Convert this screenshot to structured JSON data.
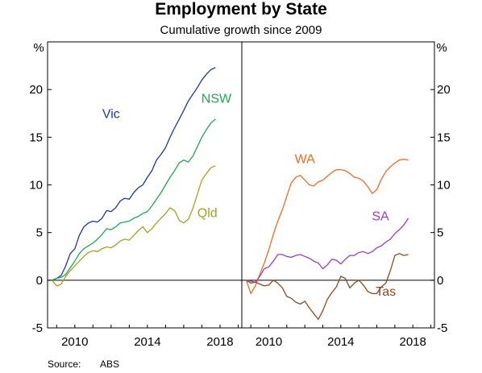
{
  "chart_data": {
    "type": "line",
    "title": "Employment by State",
    "subtitle": "Cumulative growth since 2009",
    "y_unit_left": "%",
    "y_unit_right": "%",
    "ylim": [
      -5,
      25
    ],
    "yticks": [
      -5,
      0,
      5,
      10,
      15,
      20
    ],
    "xlim": [
      2008.5,
      2019.2
    ],
    "xticks": [
      2010,
      2014,
      2018
    ],
    "source_label": "Source:",
    "source_value": "ABS",
    "panels": [
      {
        "series": [
          {
            "name": "Vic",
            "color": "#1f35a6",
            "x": [
              2008.75,
              2009.0,
              2009.25,
              2009.5,
              2009.75,
              2010.0,
              2010.25,
              2010.5,
              2010.75,
              2011.0,
              2011.25,
              2011.5,
              2011.75,
              2012.0,
              2012.25,
              2012.5,
              2012.75,
              2013.0,
              2013.25,
              2013.5,
              2013.75,
              2014.0,
              2014.25,
              2014.5,
              2014.75,
              2015.0,
              2015.25,
              2015.5,
              2015.75,
              2016.0,
              2016.25,
              2016.5,
              2016.75,
              2017.0,
              2017.25,
              2017.5,
              2017.75
            ],
            "y": [
              0,
              0.2,
              0.5,
              1.5,
              2.8,
              3.3,
              4.7,
              5.6,
              6.0,
              6.2,
              6.1,
              6.5,
              7.3,
              7.2,
              7.6,
              8.3,
              8.6,
              8.5,
              9.2,
              9.7,
              10.0,
              10.8,
              11.5,
              12.6,
              13.2,
              13.9,
              15.0,
              16.0,
              16.9,
              17.8,
              18.8,
              19.5,
              20.2,
              21.0,
              21.6,
              22.1,
              22.3
            ]
          },
          {
            "name": "NSW",
            "color": "#1ea84f",
            "x": [
              2008.75,
              2009.0,
              2009.25,
              2009.5,
              2009.75,
              2010.0,
              2010.25,
              2010.5,
              2010.75,
              2011.0,
              2011.25,
              2011.5,
              2011.75,
              2012.0,
              2012.25,
              2012.5,
              2012.75,
              2013.0,
              2013.25,
              2013.5,
              2013.75,
              2014.0,
              2014.25,
              2014.5,
              2014.75,
              2015.0,
              2015.25,
              2015.5,
              2015.75,
              2016.0,
              2016.25,
              2016.5,
              2016.75,
              2017.0,
              2017.25,
              2017.5,
              2017.75
            ],
            "y": [
              0,
              0.2,
              0.3,
              0.6,
              1.3,
              2.0,
              2.8,
              3.3,
              3.6,
              3.9,
              4.3,
              4.8,
              5.4,
              5.3,
              5.6,
              6.0,
              6.1,
              6.2,
              6.5,
              6.7,
              7.0,
              7.2,
              7.8,
              8.5,
              9.2,
              10.0,
              10.8,
              11.5,
              12.3,
              12.6,
              12.4,
              13.0,
              14.0,
              15.0,
              15.8,
              16.5,
              16.9
            ]
          },
          {
            "name": "Qld",
            "color": "#a3a11f",
            "x": [
              2008.75,
              2009.0,
              2009.25,
              2009.5,
              2009.75,
              2010.0,
              2010.25,
              2010.5,
              2010.75,
              2011.0,
              2011.25,
              2011.5,
              2011.75,
              2012.0,
              2012.25,
              2012.5,
              2012.75,
              2013.0,
              2013.25,
              2013.5,
              2013.75,
              2014.0,
              2014.25,
              2014.5,
              2014.75,
              2015.0,
              2015.25,
              2015.5,
              2015.75,
              2016.0,
              2016.25,
              2016.5,
              2016.75,
              2017.0,
              2017.25,
              2017.5,
              2017.75
            ],
            "y": [
              0,
              -0.6,
              -0.4,
              0.4,
              1.0,
              1.5,
              2.0,
              2.5,
              2.9,
              3.1,
              3.0,
              3.3,
              3.5,
              3.4,
              3.7,
              4.1,
              4.3,
              4.2,
              4.7,
              5.2,
              5.6,
              5.0,
              5.4,
              6.0,
              6.5,
              7.0,
              7.6,
              7.3,
              6.3,
              6.0,
              6.4,
              7.5,
              9.0,
              10.5,
              11.2,
              11.8,
              12.0
            ]
          }
        ],
        "labels": [
          {
            "text": "Vic",
            "color": "#1f35a6",
            "x": 2012.0,
            "y": 17.0
          },
          {
            "text": "NSW",
            "color": "#1ea84f",
            "x": 2017.8,
            "y": 18.6
          },
          {
            "text": "Qld",
            "color": "#a3a11f",
            "x": 2017.3,
            "y": 6.6
          }
        ]
      },
      {
        "series": [
          {
            "name": "WA",
            "color": "#f26b21",
            "x": [
              2008.75,
              2009.0,
              2009.25,
              2009.5,
              2009.75,
              2010.0,
              2010.25,
              2010.5,
              2010.75,
              2011.0,
              2011.25,
              2011.5,
              2011.75,
              2012.0,
              2012.25,
              2012.5,
              2012.75,
              2013.0,
              2013.25,
              2013.5,
              2013.75,
              2014.0,
              2014.25,
              2014.5,
              2014.75,
              2015.0,
              2015.25,
              2015.5,
              2015.75,
              2016.0,
              2016.25,
              2016.5,
              2016.75,
              2017.0,
              2017.25,
              2017.5,
              2017.75
            ],
            "y": [
              0,
              -1.4,
              -0.6,
              0.6,
              1.8,
              3.2,
              4.8,
              6.2,
              7.4,
              8.8,
              10.2,
              10.8,
              11.0,
              10.5,
              10.0,
              9.9,
              10.3,
              10.5,
              10.9,
              11.3,
              11.6,
              11.6,
              11.5,
              11.2,
              10.8,
              10.7,
              10.4,
              9.8,
              9.1,
              9.5,
              10.6,
              11.4,
              11.9,
              12.3,
              12.6,
              12.7,
              12.6
            ]
          },
          {
            "name": "SA",
            "color": "#9e3bc2",
            "x": [
              2008.75,
              2009.0,
              2009.25,
              2009.5,
              2009.75,
              2010.0,
              2010.25,
              2010.5,
              2010.75,
              2011.0,
              2011.25,
              2011.5,
              2011.75,
              2012.0,
              2012.25,
              2012.5,
              2012.75,
              2013.0,
              2013.25,
              2013.5,
              2013.75,
              2014.0,
              2014.25,
              2014.5,
              2014.75,
              2015.0,
              2015.25,
              2015.5,
              2015.75,
              2016.0,
              2016.25,
              2016.5,
              2016.75,
              2017.0,
              2017.25,
              2017.5,
              2017.75
            ],
            "y": [
              0,
              -0.1,
              -0.2,
              0.4,
              1.2,
              1.4,
              2.0,
              2.7,
              2.7,
              2.5,
              2.4,
              2.6,
              2.7,
              2.5,
              2.3,
              2.0,
              1.8,
              1.2,
              1.6,
              2.2,
              2.1,
              1.7,
              2.2,
              2.6,
              2.6,
              2.9,
              3.0,
              2.8,
              3.0,
              3.4,
              3.6,
              4.0,
              4.3,
              4.9,
              5.3,
              5.8,
              6.5
            ]
          },
          {
            "name": "Tas",
            "color": "#8b4a24",
            "x": [
              2008.75,
              2009.0,
              2009.25,
              2009.5,
              2009.75,
              2010.0,
              2010.25,
              2010.5,
              2010.75,
              2011.0,
              2011.25,
              2011.5,
              2011.75,
              2012.0,
              2012.25,
              2012.5,
              2012.75,
              2013.0,
              2013.25,
              2013.5,
              2013.75,
              2014.0,
              2014.25,
              2014.5,
              2014.75,
              2015.0,
              2015.25,
              2015.5,
              2015.75,
              2016.0,
              2016.25,
              2016.5,
              2016.75,
              2017.0,
              2017.25,
              2017.5,
              2017.75
            ],
            "y": [
              0,
              -0.3,
              -0.2,
              -0.4,
              -0.6,
              -0.5,
              0.0,
              -0.3,
              -0.8,
              -1.7,
              -1.9,
              -2.3,
              -2.5,
              -2.2,
              -2.9,
              -3.5,
              -4.1,
              -3.2,
              -2.0,
              -1.3,
              -0.7,
              0.4,
              0.2,
              -0.8,
              -0.3,
              0.0,
              -0.5,
              -1.2,
              -1.4,
              -1.4,
              -0.7,
              -0.3,
              1.0,
              2.6,
              2.8,
              2.6,
              2.7
            ]
          }
        ],
        "labels": [
          {
            "text": "WA",
            "color": "#f26b21",
            "x": 2012.0,
            "y": 12.3
          },
          {
            "text": "SA",
            "color": "#9e3bc2",
            "x": 2016.2,
            "y": 6.3
          },
          {
            "text": "Tas",
            "color": "#8b4a24",
            "x": 2016.5,
            "y": -1.6
          }
        ]
      }
    ]
  }
}
